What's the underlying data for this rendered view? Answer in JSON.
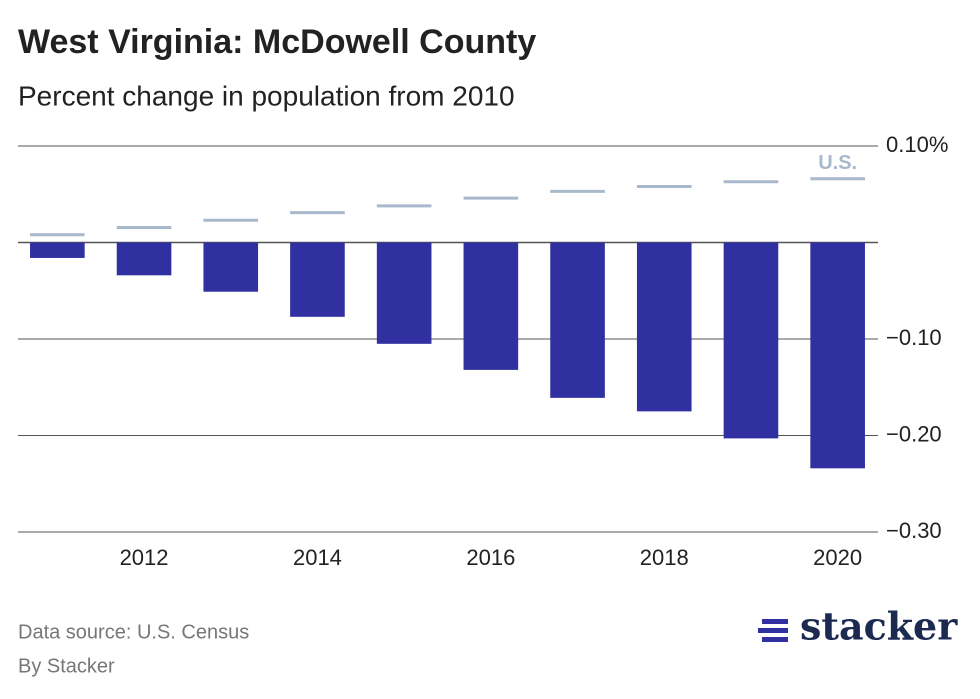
{
  "chart_data": {
    "type": "bar",
    "title": "West Virginia: McDowell County",
    "subtitle": "Percent change in population from 2010",
    "x": [
      2011,
      2012,
      2013,
      2014,
      2015,
      2016,
      2017,
      2018,
      2019,
      2020
    ],
    "xlim": [
      2010.5,
      2020.5
    ],
    "xticks": [
      2012,
      2014,
      2016,
      2018,
      2020
    ],
    "ylim": [
      -0.3,
      0.1
    ],
    "yticks": [
      {
        "value": 0.1,
        "label": "0.10%"
      },
      {
        "value": -0.1,
        "label": "−0.10"
      },
      {
        "value": -0.2,
        "label": "−0.20"
      },
      {
        "value": -0.3,
        "label": "−0.30"
      }
    ],
    "grid": true,
    "series": [
      {
        "color": "#3030a0",
        "values": [
          -0.016,
          -0.034,
          -0.051,
          -0.077,
          -0.105,
          -0.132,
          -0.161,
          -0.175,
          -0.203,
          -0.234
        ]
      },
      {
        "name": "U.S.",
        "color": "#a9b9cc",
        "values": [
          0.008,
          0.0155,
          0.023,
          0.031,
          0.038,
          0.046,
          0.053,
          0.058,
          0.063,
          0.066
        ]
      }
    ],
    "source": "Data source: U.S. Census",
    "byline": "By Stacker",
    "logo": "stacker"
  }
}
